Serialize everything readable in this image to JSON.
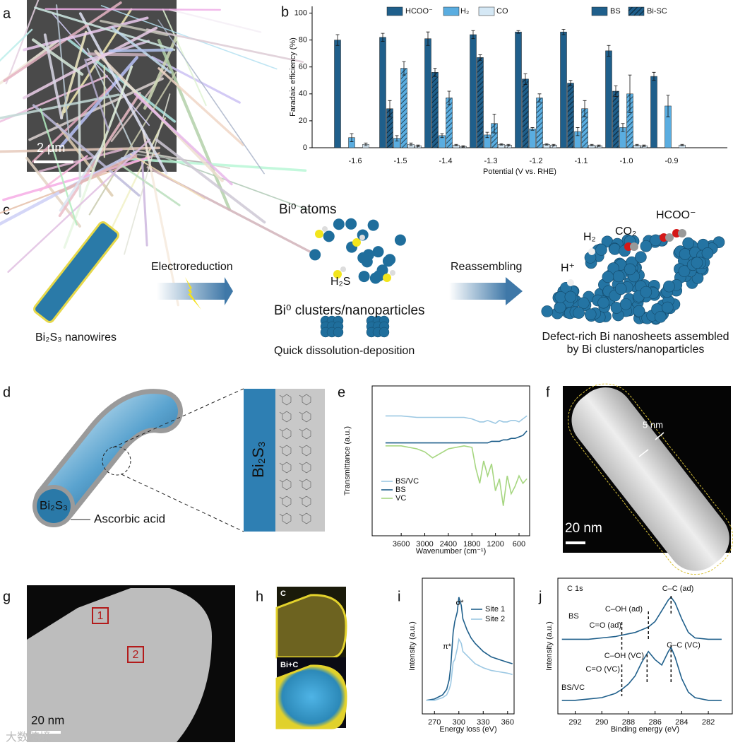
{
  "panels": {
    "letters": [
      "a",
      "b",
      "c",
      "d",
      "e",
      "f",
      "g",
      "h",
      "i",
      "j"
    ],
    "a": {
      "scale_bar": "2 μm"
    },
    "c": {
      "nanowire": "Bi₂S₃ nanowires",
      "step1": "Electroreduction",
      "atoms": "Bi⁰ atoms",
      "h2s": "H₂S",
      "clusters": "Bi⁰ clusters/nanoparticles",
      "process": "Quick dissolution-deposition",
      "step2": "Reassembling",
      "hcoo": "HCOO⁻",
      "co2": "CO₂",
      "h2": "H₂",
      "hplus": "H⁺",
      "result": [
        "Defect-rich Bi nanosheets assembled",
        "by Bi clusters/nanoparticles"
      ]
    },
    "d": {
      "core": "Bi₂S₃",
      "shell_label": "Ascorbic acid",
      "slab": "Bi₂S₃"
    },
    "f": {
      "thickness": "5 nm",
      "scale_bar": "20 nm"
    },
    "g": {
      "sites": [
        "1",
        "2"
      ],
      "scale_bar": "20 nm"
    },
    "h": {
      "maps": [
        "C",
        "Bi+C"
      ]
    },
    "watermark": "大数跨境"
  },
  "chart_data": [
    {
      "type": "bar",
      "ylabel": "Faradaic efficiency (%)",
      "xlabel": "Potential (V vs. RHE)",
      "categories": [
        "-1.6",
        "-1.5",
        "-1.4",
        "-1.3",
        "-1.2",
        "-1.1",
        "-1.0",
        "-0.9"
      ],
      "ylim": [
        0,
        105
      ],
      "yticks": [
        0,
        20,
        40,
        60,
        80,
        100
      ],
      "series": [
        {
          "name": "HCOO⁻",
          "group": "BS",
          "color": "#1f5f8b",
          "hatch": false,
          "values": [
            80,
            82,
            81,
            84,
            86,
            86,
            72,
            53
          ],
          "errors": [
            4,
            3,
            5,
            3,
            1,
            2,
            4,
            3
          ]
        },
        {
          "name": "HCOO⁻",
          "group": "Bi-SC",
          "color": "#1f5f8b",
          "hatch": true,
          "values": [
            null,
            29,
            56,
            67,
            51,
            48,
            42,
            null
          ],
          "errors": [
            null,
            6,
            3,
            2,
            4,
            2,
            4,
            null
          ]
        },
        {
          "name": "H₂",
          "group": "BS",
          "color": "#5aade0",
          "hatch": false,
          "values": [
            7.5,
            7,
            9,
            9.5,
            14,
            12,
            15,
            31
          ],
          "errors": [
            3,
            2,
            1.5,
            2,
            1,
            3,
            3,
            8
          ]
        },
        {
          "name": "H₂",
          "group": "Bi-SC",
          "color": "#5aade0",
          "hatch": true,
          "values": [
            null,
            59,
            37,
            18,
            37,
            29,
            40,
            null
          ],
          "errors": [
            null,
            5,
            5,
            7,
            3,
            6,
            14,
            null
          ]
        },
        {
          "name": "CO",
          "group": "BS",
          "color": "#d5e8f5",
          "hatch": false,
          "values": [
            2.5,
            2.5,
            2,
            2.5,
            2.5,
            2,
            2,
            2
          ],
          "errors": [
            1,
            1,
            0.5,
            0.5,
            0.5,
            0.5,
            0.5,
            0.5
          ]
        },
        {
          "name": "CO",
          "group": "Bi-SC",
          "color": "#d5e8f5",
          "hatch": true,
          "values": [
            null,
            1.5,
            1,
            2,
            2,
            1.5,
            1.5,
            null
          ],
          "errors": [
            null,
            0.5,
            0.5,
            0.5,
            0.5,
            0.5,
            0.5,
            null
          ]
        }
      ]
    },
    {
      "type": "line",
      "ylabel": "Transmittance (a.u.)",
      "xlabel": "Wavenumber (cm⁻¹)",
      "x": [
        4000,
        3600,
        3200,
        3000,
        2800,
        2400,
        2000,
        1800,
        1700,
        1600,
        1500,
        1400,
        1300,
        1200,
        1100,
        1000,
        900,
        800,
        700,
        600,
        500,
        400
      ],
      "xlim": [
        4340,
        330
      ],
      "xticks": [
        3600,
        3000,
        2400,
        1800,
        1200,
        600
      ],
      "ylim": [
        0,
        100
      ],
      "series": [
        {
          "name": "BS/VC",
          "color": "#9cc8e3",
          "values": [
            80,
            80,
            79,
            79,
            79,
            79,
            79,
            78,
            77,
            76,
            76,
            77,
            76,
            75,
            77,
            76,
            76,
            77,
            77,
            76,
            78,
            80
          ]
        },
        {
          "name": "BS",
          "color": "#1f5f8b",
          "values": [
            62,
            62,
            62,
            62,
            62,
            62,
            62,
            62,
            62,
            62,
            62,
            62,
            63,
            63,
            63,
            64,
            64,
            65,
            65,
            66,
            67,
            70
          ]
        },
        {
          "name": "VC",
          "color": "#a6d680",
          "values": [
            60,
            60,
            58,
            56,
            52,
            58,
            60,
            59,
            45,
            35,
            50,
            40,
            48,
            30,
            38,
            20,
            40,
            28,
            33,
            40,
            35,
            38
          ]
        }
      ]
    },
    {
      "type": "line",
      "ylabel": "Intensity (a.u.)",
      "xlabel": "Energy loss (eV)",
      "x": [
        260,
        270,
        280,
        285,
        288,
        290,
        293,
        295,
        298,
        300,
        303,
        305,
        310,
        315,
        320,
        330,
        340,
        350,
        360,
        366
      ],
      "xlim": [
        255,
        368
      ],
      "xticks": [
        270,
        300,
        330,
        360
      ],
      "ylim": [
        0,
        100
      ],
      "annotations": [
        "π*",
        "σ*"
      ],
      "series": [
        {
          "name": "Site 1",
          "color": "#1f5f8b",
          "values": [
            10,
            11,
            14,
            18,
            25,
            35,
            60,
            68,
            75,
            86,
            80,
            70,
            62,
            56,
            52,
            46,
            42,
            40,
            38,
            37
          ]
        },
        {
          "name": "Site 2",
          "color": "#9cc8e3",
          "values": [
            10,
            10,
            12,
            14,
            18,
            22,
            38,
            40,
            48,
            55,
            52,
            46,
            43,
            40,
            37,
            34,
            32,
            31,
            30,
            29
          ]
        }
      ]
    },
    {
      "type": "line",
      "ylabel": "Intensity (a.u.)",
      "xlabel": "Binding energy (eV)",
      "title": "C 1s",
      "x": [
        293,
        292,
        291,
        290,
        289,
        288.5,
        288,
        287.5,
        287,
        286.5,
        286,
        285.5,
        285,
        284.8,
        284.5,
        284,
        283.5,
        283,
        282,
        281
      ],
      "xlim": [
        293.3,
        280.2
      ],
      "xticks": [
        292,
        290,
        288,
        286,
        284,
        282
      ],
      "ylim": [
        0,
        100
      ],
      "series": [
        {
          "name": "BS",
          "color": "#1f5f8b",
          "values": [
            55,
            55,
            55,
            56,
            57,
            58,
            59,
            60,
            62,
            64,
            68,
            76,
            84,
            86,
            82,
            70,
            60,
            56,
            55,
            55
          ]
        },
        {
          "name": "BS/VC",
          "color": "#1f5f8b",
          "values": [
            10,
            10,
            11,
            12,
            15,
            18,
            22,
            28,
            38,
            46,
            40,
            36,
            46,
            49,
            42,
            26,
            16,
            12,
            10,
            10
          ]
        }
      ],
      "peaks": [
        {
          "label": "C=O (ad)",
          "x": 288.5
        },
        {
          "label": "C–OH (ad)",
          "x": 286.5
        },
        {
          "label": "C–C (ad)",
          "x": 284.8
        },
        {
          "label": "C=O (VC)",
          "x": 288.5
        },
        {
          "label": "C–OH (VC)",
          "x": 286.6
        },
        {
          "label": "C–C (VC)",
          "x": 284.8
        }
      ]
    }
  ]
}
